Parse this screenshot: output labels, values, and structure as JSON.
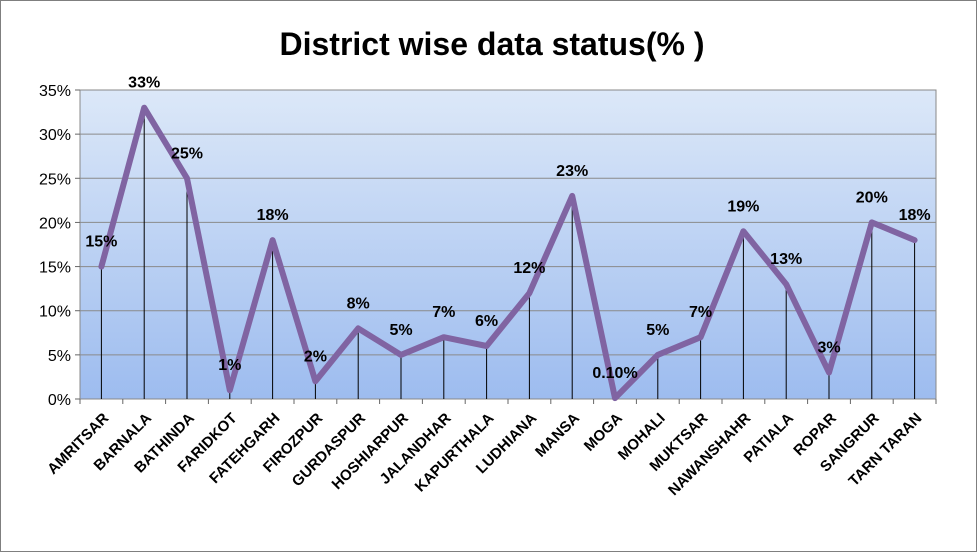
{
  "chart_data": {
    "type": "line",
    "title": "District wise data status(% )",
    "xlabel": "",
    "ylabel": "",
    "ylim": [
      0,
      35
    ],
    "y_ticks": [
      "0%",
      "5%",
      "10%",
      "15%",
      "20%",
      "25%",
      "30%",
      "35%"
    ],
    "grid": true,
    "line_color": "#8064a2",
    "drop_lines": true,
    "categories": [
      "AMRITSAR",
      "BARNALA",
      "BATHINDA",
      "FARIDKOT",
      "FATEHGARH",
      "FIROZPUR",
      "GURDASPUR",
      "HOSHIARPUR",
      "JALANDHAR",
      "KAPURTHALA",
      "LUDHIANA",
      "MANSA",
      "MOGA",
      "MOHALI",
      "MUKTSAR",
      "NAWANSHAHR",
      "PATIALA",
      "ROPAR",
      "SANGRUR",
      "TARN TARAN"
    ],
    "values": [
      15,
      33,
      25,
      1,
      18,
      2,
      8,
      5,
      7,
      6,
      12,
      23,
      0.1,
      5,
      7,
      19,
      13,
      3,
      20,
      18
    ],
    "data_labels": [
      "15%",
      "33%",
      "25%",
      "1%",
      "18%",
      "2%",
      "8%",
      "5%",
      "7%",
      "6%",
      "12%",
      "23%",
      "0.10%",
      "5%",
      "7%",
      "19%",
      "13%",
      "3%",
      "20%",
      "18%"
    ]
  }
}
